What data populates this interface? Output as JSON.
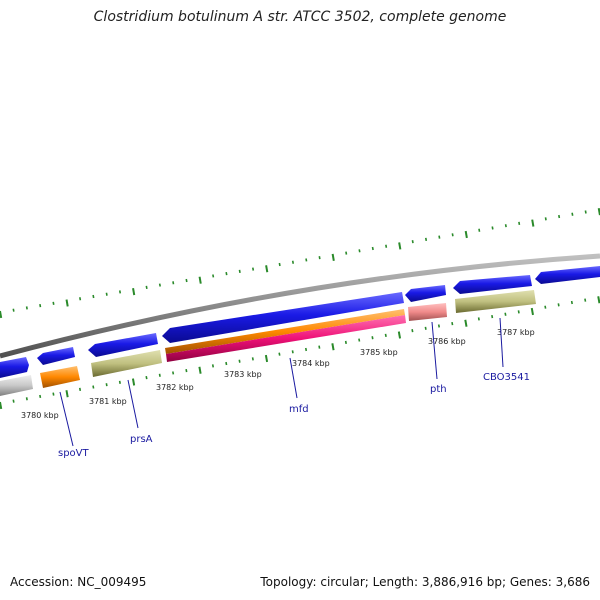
{
  "title": "Clostridium botulinum A str. ATCC 3502, complete genome",
  "footer": {
    "accession": "Accession: NC_009495",
    "stats": "Topology: circular; Length: 3,886,916 bp; Genes: 3,686"
  },
  "colors": {
    "backbone": "#8a8a8a",
    "cds": "#1a1ae6",
    "cds_shadow": "#0a0a80",
    "orange": "#ff8800",
    "olive": "#c0c080",
    "pink_red": "#ee1177",
    "salmon": "#f08a8a",
    "grey": "#c8c8c8",
    "tick_green": "#2a8a2a",
    "label_blue": "#1a1aa0"
  },
  "scale_labels": [
    "3780 kbp",
    "3781 kbp",
    "3782 kbp",
    "3783 kbp",
    "3784 kbp",
    "3785 kbp",
    "3786 kbp",
    "3787 kbp"
  ],
  "gene_labels": [
    "spoVT",
    "prsA",
    "mfd",
    "pth",
    "CBO3541"
  ]
}
